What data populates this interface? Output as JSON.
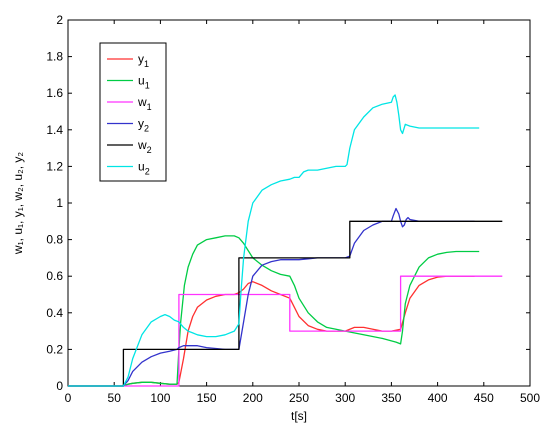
{
  "chart_data": {
    "type": "line",
    "title": "",
    "xlabel": "t[s]",
    "ylabel": "w₁, u₁, y₁, w₂, u₂, y₂",
    "xlim": [
      0,
      500
    ],
    "ylim": [
      0,
      2
    ],
    "x_ticks": [
      0,
      50,
      100,
      150,
      200,
      250,
      300,
      350,
      400,
      450,
      500
    ],
    "y_ticks": [
      0,
      0.2,
      0.4,
      0.6,
      0.8,
      1,
      1.2,
      1.4,
      1.6,
      1.8,
      2
    ],
    "x_tick_labels": [
      "0",
      "50",
      "100",
      "150",
      "200",
      "250",
      "300",
      "350",
      "400",
      "450",
      "500"
    ],
    "y_tick_labels": [
      "0",
      "0.2",
      "0.4",
      "0.6",
      "0.8",
      "1",
      "1.2",
      "1.4",
      "1.6",
      "1.8",
      "2"
    ],
    "grid": false,
    "legend_position": "top-left",
    "series": [
      {
        "name": "y1",
        "label_main": "y",
        "label_sub": "1",
        "color": "#ff3030",
        "x": [
          0,
          60,
          65,
          70,
          80,
          90,
          100,
          110,
          118,
          120,
          125,
          130,
          135,
          140,
          150,
          160,
          170,
          180,
          185,
          190,
          195,
          200,
          210,
          220,
          230,
          240,
          245,
          250,
          260,
          270,
          280,
          290,
          300,
          310,
          320,
          330,
          340,
          350,
          360,
          365,
          370,
          380,
          390,
          400,
          410,
          420,
          430,
          440
        ],
        "y": [
          0,
          0,
          0.01,
          0.015,
          0.02,
          0.02,
          0.015,
          0.01,
          0.01,
          0.02,
          0.15,
          0.3,
          0.38,
          0.43,
          0.47,
          0.49,
          0.5,
          0.5,
          0.51,
          0.53,
          0.56,
          0.57,
          0.55,
          0.52,
          0.5,
          0.48,
          0.43,
          0.38,
          0.33,
          0.31,
          0.3,
          0.3,
          0.3,
          0.32,
          0.32,
          0.31,
          0.3,
          0.3,
          0.31,
          0.4,
          0.48,
          0.55,
          0.58,
          0.595,
          0.6,
          0.6,
          0.6,
          0.6
        ]
      },
      {
        "name": "u1",
        "label_main": "u",
        "label_sub": "1",
        "color": "#00cc44",
        "x": [
          0,
          60,
          65,
          70,
          80,
          90,
          100,
          110,
          118,
          120,
          122,
          126,
          130,
          135,
          140,
          150,
          160,
          170,
          180,
          185,
          190,
          195,
          200,
          210,
          220,
          230,
          240,
          245,
          250,
          260,
          270,
          280,
          290,
          300,
          320,
          340,
          355,
          360,
          362,
          365,
          370,
          380,
          390,
          400,
          410,
          420,
          430,
          440,
          445
        ],
        "y": [
          0,
          0,
          0.01,
          0.015,
          0.02,
          0.02,
          0.015,
          0.01,
          0.01,
          0.2,
          0.35,
          0.55,
          0.65,
          0.72,
          0.77,
          0.8,
          0.81,
          0.82,
          0.82,
          0.81,
          0.78,
          0.74,
          0.7,
          0.66,
          0.63,
          0.61,
          0.6,
          0.55,
          0.48,
          0.4,
          0.35,
          0.32,
          0.31,
          0.3,
          0.28,
          0.26,
          0.24,
          0.23,
          0.3,
          0.45,
          0.55,
          0.65,
          0.7,
          0.72,
          0.73,
          0.735,
          0.735,
          0.735,
          0.735
        ]
      },
      {
        "name": "w1",
        "label_main": "w",
        "label_sub": "1",
        "color": "#ff33ff",
        "x": [
          0,
          120,
          120,
          240,
          240,
          360,
          360,
          470
        ],
        "y": [
          0,
          0,
          0.5,
          0.5,
          0.3,
          0.3,
          0.6,
          0.6
        ]
      },
      {
        "name": "y2",
        "label_main": "y",
        "label_sub": "2",
        "color": "#3333cc",
        "x": [
          0,
          60,
          65,
          70,
          80,
          90,
          100,
          110,
          118,
          120,
          125,
          130,
          140,
          150,
          160,
          170,
          180,
          185,
          190,
          195,
          200,
          210,
          220,
          230,
          240,
          250,
          260,
          270,
          280,
          290,
          300,
          305,
          310,
          320,
          330,
          340,
          350,
          352,
          355,
          358,
          360,
          362,
          364,
          366,
          368,
          370,
          380,
          390,
          400,
          420,
          440
        ],
        "y": [
          0,
          0,
          0.03,
          0.08,
          0.13,
          0.16,
          0.18,
          0.19,
          0.2,
          0.21,
          0.22,
          0.22,
          0.22,
          0.21,
          0.205,
          0.2,
          0.2,
          0.2,
          0.35,
          0.5,
          0.6,
          0.66,
          0.68,
          0.69,
          0.69,
          0.69,
          0.695,
          0.7,
          0.7,
          0.7,
          0.7,
          0.71,
          0.78,
          0.85,
          0.88,
          0.9,
          0.9,
          0.93,
          0.97,
          0.94,
          0.9,
          0.87,
          0.88,
          0.91,
          0.92,
          0.91,
          0.9,
          0.9,
          0.9,
          0.9,
          0.9
        ]
      },
      {
        "name": "w2",
        "label_main": "w",
        "label_sub": "2",
        "color": "#000000",
        "x": [
          0,
          60,
          60,
          185,
          185,
          305,
          305,
          470
        ],
        "y": [
          0,
          0,
          0.2,
          0.2,
          0.7,
          0.7,
          0.9,
          0.9
        ]
      },
      {
        "name": "u2",
        "label_main": "u",
        "label_sub": "2",
        "color": "#00e5e5",
        "x": [
          0,
          60,
          65,
          70,
          80,
          90,
          100,
          105,
          110,
          115,
          120,
          125,
          130,
          135,
          140,
          150,
          160,
          170,
          180,
          185,
          187,
          190,
          195,
          200,
          210,
          220,
          230,
          240,
          245,
          250,
          255,
          260,
          270,
          280,
          290,
          300,
          302,
          305,
          310,
          320,
          330,
          340,
          350,
          352,
          354,
          356,
          358,
          360,
          362,
          365,
          370,
          380,
          390,
          400,
          420,
          440,
          445
        ],
        "y": [
          0,
          0,
          0.05,
          0.15,
          0.28,
          0.35,
          0.38,
          0.39,
          0.38,
          0.36,
          0.35,
          0.32,
          0.3,
          0.29,
          0.28,
          0.27,
          0.27,
          0.28,
          0.3,
          0.34,
          0.5,
          0.7,
          0.9,
          1.0,
          1.07,
          1.1,
          1.12,
          1.13,
          1.14,
          1.14,
          1.17,
          1.18,
          1.18,
          1.19,
          1.2,
          1.2,
          1.21,
          1.3,
          1.4,
          1.47,
          1.52,
          1.54,
          1.55,
          1.58,
          1.59,
          1.55,
          1.48,
          1.4,
          1.38,
          1.43,
          1.42,
          1.41,
          1.41,
          1.41,
          1.41,
          1.41,
          1.41
        ]
      }
    ]
  }
}
